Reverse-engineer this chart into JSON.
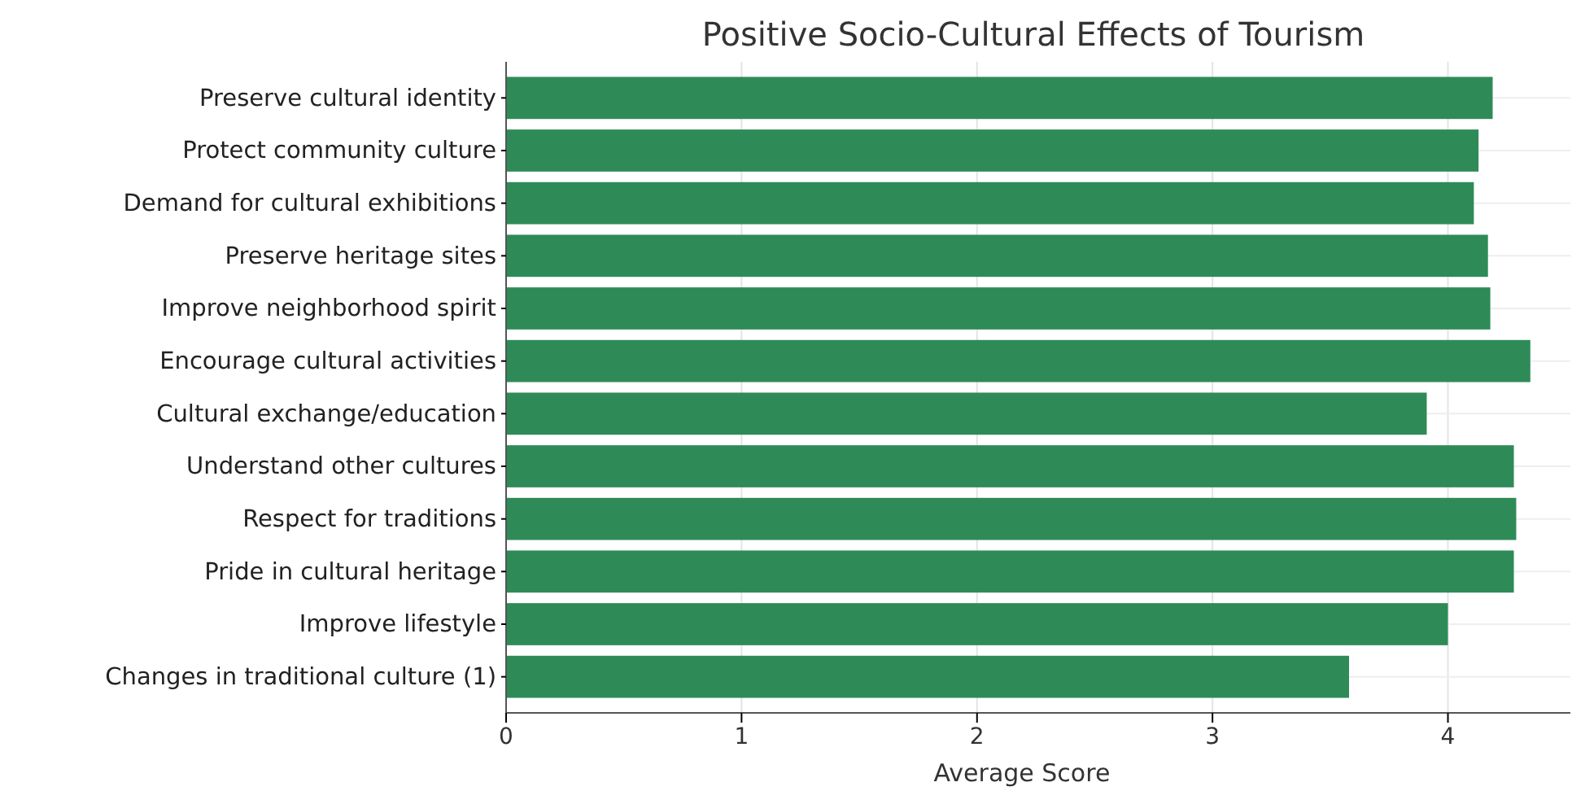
{
  "chart_data": {
    "type": "bar",
    "orientation": "horizontal",
    "title": "Positive Socio-Cultural Effects of Tourism",
    "xlabel": "Average Score",
    "categories": [
      "Preserve cultural identity",
      "Protect community culture",
      "Demand for cultural exhibitions",
      "Preserve heritage sites",
      "Improve neighborhood spirit",
      "Encourage cultural activities",
      "Cultural exchange/education",
      "Understand other cultures",
      "Respect for traditions",
      "Pride in cultural heritage",
      "Improve lifestyle",
      "Changes in traditional culture (1)"
    ],
    "values": [
      4.19,
      4.13,
      4.11,
      4.17,
      4.18,
      4.35,
      3.91,
      4.28,
      4.29,
      4.28,
      4.0,
      3.58
    ],
    "color": "#2e8b57",
    "xlim": [
      0,
      4.52
    ],
    "xticks": [
      0,
      1,
      2,
      3,
      4
    ],
    "grid": true
  }
}
